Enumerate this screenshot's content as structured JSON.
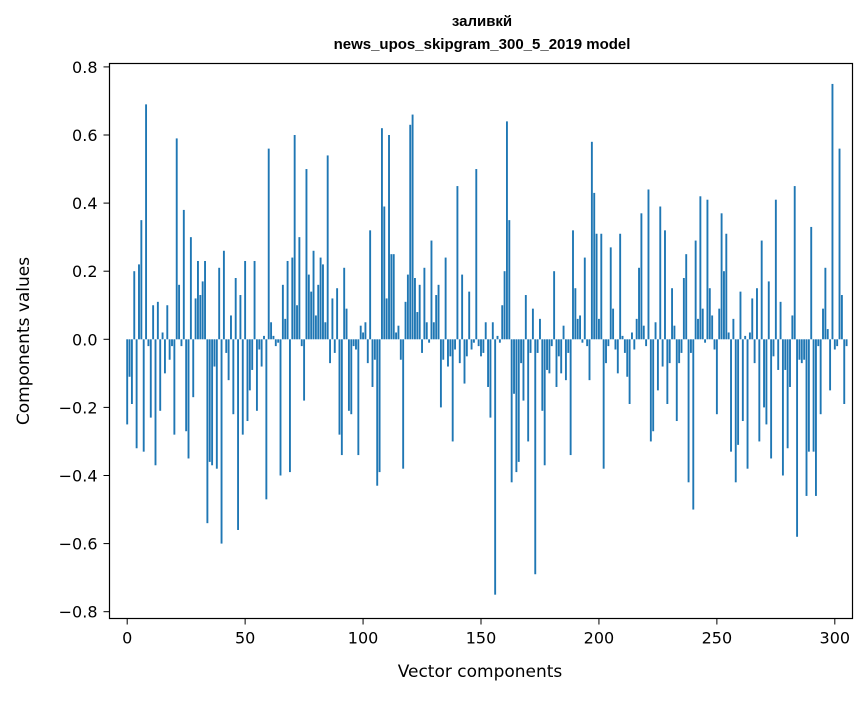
{
  "chart_data": {
    "type": "bar",
    "title": "заливкй",
    "subtitle": "news_upos_skipgram_300_5_2019 model",
    "xlabel": "Vector components",
    "ylabel": "Components values",
    "xlim": [
      -7.5,
      307.5
    ],
    "ylim": [
      -0.82,
      0.81
    ],
    "xticks": [
      0,
      50,
      100,
      150,
      200,
      250,
      300
    ],
    "xtick_labels": [
      "0",
      "50",
      "100",
      "150",
      "200",
      "250",
      "300"
    ],
    "yticks": [
      -0.8,
      -0.6,
      -0.4,
      -0.2,
      0.0,
      0.2,
      0.4,
      0.6,
      0.8
    ],
    "ytick_labels": [
      "−0.8",
      "−0.6",
      "−0.4",
      "−0.2",
      "0.0",
      "0.2",
      "0.4",
      "0.6",
      "0.8"
    ],
    "grid": false,
    "bar_color": "#1f77b4",
    "values": [
      -0.25,
      -0.11,
      -0.19,
      0.2,
      -0.32,
      0.22,
      0.35,
      -0.33,
      0.69,
      -0.02,
      -0.23,
      0.1,
      -0.37,
      0.11,
      -0.21,
      0.02,
      -0.1,
      0.1,
      -0.06,
      -0.02,
      -0.28,
      0.59,
      0.16,
      -0.02,
      0.38,
      -0.27,
      -0.35,
      0.3,
      -0.17,
      0.12,
      0.23,
      0.13,
      0.17,
      0.23,
      -0.54,
      -0.36,
      -0.37,
      -0.08,
      -0.38,
      0.21,
      -0.6,
      0.26,
      -0.04,
      -0.12,
      0.07,
      -0.22,
      0.18,
      -0.56,
      0.13,
      -0.28,
      0.23,
      -0.24,
      -0.15,
      -0.09,
      0.23,
      -0.21,
      -0.03,
      -0.08,
      0.01,
      -0.47,
      0.56,
      0.05,
      0.01,
      -0.02,
      -0.01,
      -0.4,
      0.16,
      0.06,
      0.23,
      -0.39,
      0.24,
      0.6,
      0.1,
      0.3,
      -0.02,
      -0.18,
      0.5,
      0.19,
      0.14,
      0.26,
      0.07,
      0.16,
      0.24,
      0.22,
      0.05,
      0.54,
      -0.07,
      0.12,
      -0.04,
      0.15,
      -0.28,
      -0.34,
      0.21,
      0.09,
      -0.21,
      -0.22,
      -0.02,
      -0.03,
      -0.34,
      0.04,
      0.02,
      0.05,
      -0.07,
      0.32,
      -0.14,
      -0.06,
      -0.43,
      -0.39,
      0.62,
      0.39,
      0.12,
      0.6,
      0.25,
      0.25,
      0.02,
      0.04,
      -0.06,
      -0.38,
      0.11,
      0.19,
      0.63,
      0.66,
      0.18,
      0.08,
      0.16,
      -0.04,
      0.21,
      0.05,
      -0.01,
      0.29,
      0.05,
      0.13,
      0.16,
      -0.2,
      -0.06,
      0.24,
      -0.08,
      -0.05,
      -0.3,
      -0.03,
      0.45,
      -0.07,
      0.19,
      -0.13,
      -0.05,
      0.14,
      -0.03,
      -0.01,
      0.5,
      -0.02,
      -0.05,
      -0.04,
      0.05,
      -0.14,
      -0.23,
      0.05,
      -0.75,
      0.01,
      -0.01,
      0.1,
      0.2,
      0.64,
      0.35,
      -0.42,
      -0.16,
      -0.39,
      -0.36,
      -0.07,
      -0.18,
      0.13,
      -0.3,
      -0.04,
      0.09,
      -0.69,
      -0.04,
      0.06,
      -0.21,
      -0.37,
      -0.09,
      -0.1,
      -0.02,
      0.2,
      -0.14,
      -0.05,
      -0.1,
      0.04,
      -0.12,
      -0.04,
      -0.34,
      0.32,
      0.15,
      0.06,
      0.07,
      -0.01,
      0.24,
      -0.02,
      -0.12,
      0.58,
      0.43,
      0.31,
      0.06,
      0.31,
      -0.38,
      -0.07,
      -0.02,
      0.27,
      0.09,
      -0.03,
      -0.1,
      0.31,
      0.01,
      -0.04,
      -0.11,
      -0.19,
      0.02,
      -0.03,
      0.06,
      0.21,
      0.37,
      0.04,
      -0.02,
      0.44,
      -0.3,
      -0.27,
      0.05,
      -0.15,
      0.39,
      -0.08,
      0.32,
      -0.19,
      -0.07,
      0.15,
      0.04,
      -0.24,
      -0.07,
      -0.04,
      0.18,
      0.25,
      -0.42,
      -0.04,
      -0.5,
      0.29,
      0.06,
      0.42,
      0.09,
      -0.01,
      0.41,
      0.15,
      0.07,
      -0.03,
      -0.22,
      0.09,
      0.37,
      0.2,
      0.31,
      0.02,
      -0.33,
      0.06,
      -0.42,
      -0.31,
      0.14,
      -0.24,
      0.01,
      -0.38,
      0.02,
      0.12,
      -0.07,
      0.15,
      -0.3,
      0.29,
      -0.2,
      -0.25,
      0.17,
      -0.35,
      -0.05,
      0.41,
      -0.09,
      0.11,
      -0.4,
      -0.09,
      -0.32,
      -0.14,
      0.07,
      0.45,
      -0.58,
      -0.06,
      -0.07,
      -0.06,
      -0.46,
      -0.33,
      0.33,
      -0.33,
      -0.46,
      -0.02,
      -0.22,
      0.09,
      0.21,
      0.03,
      -0.15,
      0.75,
      -0.03,
      -0.02,
      0.56,
      0.13,
      -0.19,
      -0.02
    ]
  }
}
